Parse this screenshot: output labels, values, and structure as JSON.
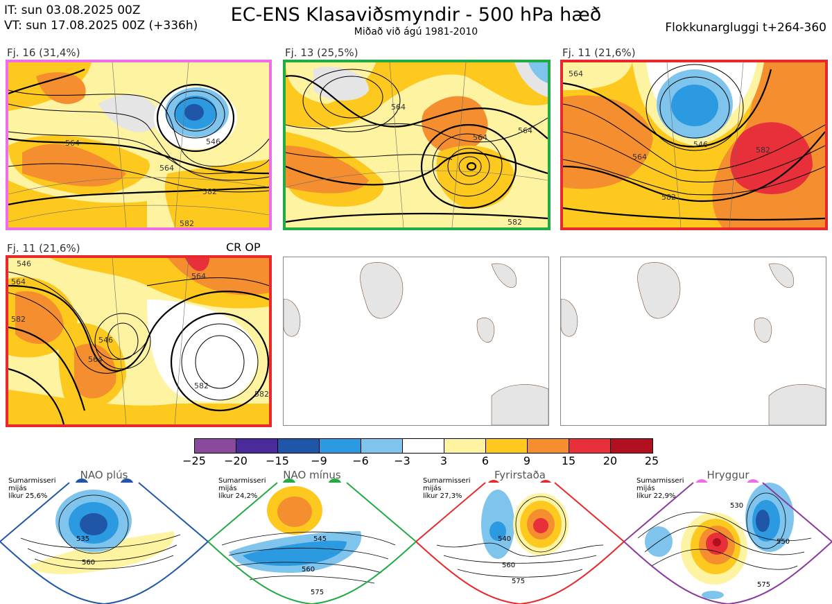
{
  "header": {
    "it_line": "IT: sun 03.08.2025 00Z",
    "vt_line": "VT: sun 17.08.2025 00Z  (+336h)",
    "title": "EC-ENS Klasaviðsmyndir - 500 hPa hæð",
    "subtitle": "Miðað við ágú 1981-2010",
    "window": "Flokkunargluggi t+264-360"
  },
  "panels": [
    {
      "label": "Fj. 16 (31,4%)",
      "border": "#ee6ee8",
      "contours": [
        "564",
        "546",
        "564",
        "582",
        "582"
      ]
    },
    {
      "label": "Fj. 13 (25,5%)",
      "border": "#22aa44",
      "contours": [
        "564",
        "564",
        "564",
        "582"
      ]
    },
    {
      "label": "Fj. 11 (21,6%)",
      "border": "#e8282a",
      "contours": [
        "564",
        "546",
        "564",
        "582",
        "582"
      ]
    },
    {
      "label": "Fj. 11 (21,6%)",
      "border": "#e8282a",
      "extra": "CR OP",
      "contours": [
        "546",
        "564",
        "582",
        "546",
        "564",
        "564",
        "582",
        "582"
      ]
    }
  ],
  "colorbar": {
    "colors": [
      "#8a4a9c",
      "#4b2a9c",
      "#1f56a8",
      "#2b9ae0",
      "#7fc4ec",
      "#ffffff",
      "#fdf3a0",
      "#fdc91e",
      "#f58e2e",
      "#e8303a",
      "#b01020"
    ],
    "ticks": [
      "−25",
      "−20",
      "−15",
      "−9",
      "−6",
      "−3",
      "3",
      "6",
      "9",
      "15",
      "20",
      "25"
    ]
  },
  "regimes": [
    {
      "title": "NAO plús",
      "info": [
        "Sumarmisseri",
        "mijás",
        "líkur 25,6%"
      ],
      "color": "#1f56a8",
      "labels": [
        "535",
        "560"
      ]
    },
    {
      "title": "NAO mínus",
      "info": [
        "Sumarmisseri",
        "mijás",
        "líkur 24,2%"
      ],
      "color": "#22aa44",
      "labels": [
        "545",
        "560",
        "575"
      ]
    },
    {
      "title": "Fyrirstaða",
      "info": [
        "Sumarmisseri",
        "mijás",
        "líkur 27,3%"
      ],
      "color": "#e8282a",
      "labels": [
        "540",
        "560",
        "575"
      ]
    },
    {
      "title": "Hryggur",
      "info": [
        "Sumarmisseri",
        "mijás",
        "líkur 22,9%"
      ],
      "color": "#ee6ee8",
      "labels": [
        "530",
        "550",
        "575"
      ]
    }
  ]
}
